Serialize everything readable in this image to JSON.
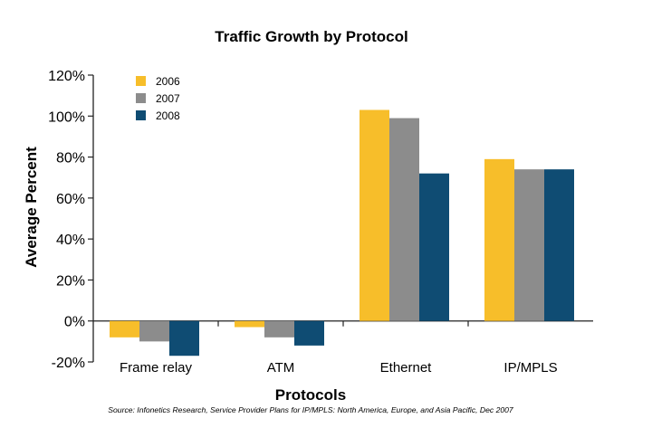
{
  "chart_data": {
    "type": "bar",
    "title": "Traffic Growth by Protocol",
    "xlabel": "Protocols",
    "ylabel": "Average Percent",
    "categories": [
      "Frame relay",
      "ATM",
      "Ethernet",
      "IP/MPLS"
    ],
    "series": [
      {
        "name": "2006",
        "color": "#F7BE2A",
        "values": [
          -8,
          -3,
          103,
          79
        ]
      },
      {
        "name": "2007",
        "color": "#8C8C8C",
        "values": [
          -10,
          -8,
          99,
          74
        ]
      },
      {
        "name": "2008",
        "color": "#0F4C73",
        "values": [
          -17,
          -12,
          72,
          74
        ]
      }
    ],
    "ylim": [
      -20,
      120
    ],
    "yticks": [
      -20,
      0,
      20,
      40,
      60,
      80,
      100,
      120
    ],
    "ytick_labels": [
      "-20%",
      "0%",
      "20%",
      "40%",
      "60%",
      "80%",
      "100%",
      "120%"
    ],
    "legend_position": "top-left",
    "grid": false,
    "source": "Source: Infonetics Research, Service Provider Plans for IP/MPLS: North America, Europe, and Asia Pacific, Dec 2007"
  }
}
